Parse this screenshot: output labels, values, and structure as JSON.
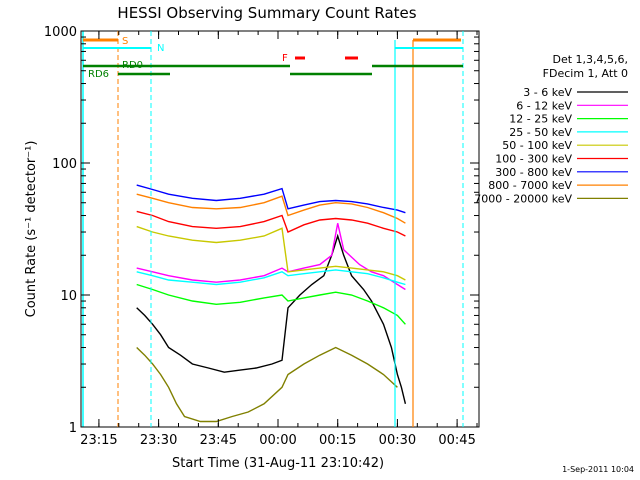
{
  "chart_data": {
    "type": "line",
    "title": "HESSI Observing Summary Count Rates",
    "xlabel": "Start Time (31-Aug-11 23:10:42)",
    "ylabel": "Count Rate (s⁻¹ detector⁻¹)",
    "x_unit": "minutes after 23:10:42",
    "xlim": [
      0,
      100
    ],
    "ylim": [
      1,
      1000
    ],
    "yscale": "log",
    "x_ticks": [
      {
        "t": 4.5,
        "label": "23:15"
      },
      {
        "t": 19.5,
        "label": "23:30"
      },
      {
        "t": 34.5,
        "label": "23:45"
      },
      {
        "t": 49.5,
        "label": "00:00"
      },
      {
        "t": 64.5,
        "label": "00:15"
      },
      {
        "t": 79.5,
        "label": "00:30"
      },
      {
        "t": 94.5,
        "label": "00:45"
      }
    ],
    "y_ticks": [
      {
        "v": 1,
        "label": "1"
      },
      {
        "v": 10,
        "label": "10"
      },
      {
        "v": 100,
        "label": "100"
      },
      {
        "v": 1000,
        "label": "1000"
      }
    ],
    "legend_header": [
      "Det 1,3,4,5,6,",
      "FDecim 1, Att 0"
    ],
    "legend_position": "right",
    "series": [
      {
        "name": "3 - 6 keV",
        "color": "#000000",
        "x": [
          14,
          16,
          18,
          20,
          22,
          25,
          28,
          32,
          36,
          40,
          44,
          48,
          50.5,
          52,
          55,
          58,
          61,
          63,
          64.5,
          66,
          68,
          71,
          73,
          76,
          78,
          79.5,
          80.5,
          81.5
        ],
        "values": [
          8,
          7,
          6,
          5,
          4,
          3.5,
          3,
          2.8,
          2.6,
          2.7,
          2.8,
          3,
          3.2,
          8,
          10,
          12,
          14,
          20,
          28,
          20,
          14,
          11,
          9,
          6,
          4,
          2.5,
          2,
          1.5
        ]
      },
      {
        "name": "6 - 12 keV",
        "color": "#ff00ff",
        "x": [
          14,
          18,
          22,
          28,
          34,
          40,
          46,
          50.5,
          52,
          56,
          60,
          63,
          64.5,
          66,
          70,
          73,
          76,
          79.5,
          81.5
        ],
        "values": [
          16,
          15,
          14,
          13,
          12.5,
          13,
          14,
          16,
          15,
          16,
          17,
          20,
          35,
          22,
          17,
          15,
          14,
          12,
          11
        ]
      },
      {
        "name": "12 - 25 keV",
        "color": "#00ff00",
        "x": [
          14,
          18,
          22,
          28,
          34,
          40,
          46,
          50.5,
          52,
          56,
          60,
          64,
          68,
          72,
          76,
          79.5,
          81.5
        ],
        "values": [
          12,
          11,
          10,
          9,
          8.5,
          8.8,
          9.5,
          10,
          9,
          9.5,
          10,
          10.5,
          10,
          9,
          8,
          7,
          6
        ]
      },
      {
        "name": "25 - 50 keV",
        "color": "#00ffff",
        "x": [
          14,
          18,
          22,
          28,
          34,
          40,
          46,
          50.5,
          52,
          56,
          60,
          64,
          68,
          72,
          76,
          79.5,
          81.5
        ],
        "values": [
          15,
          14,
          13,
          12.5,
          12,
          12.5,
          13.5,
          15,
          14,
          14.5,
          15,
          15.5,
          15,
          14.5,
          13.5,
          12.5,
          12
        ]
      },
      {
        "name": "50 - 100 keV",
        "color": "#c8c800",
        "x": [
          14,
          18,
          22,
          28,
          34,
          40,
          46,
          50.5,
          52,
          56,
          60,
          64,
          68,
          72,
          76,
          79.5,
          81.5
        ],
        "values": [
          33,
          30,
          28,
          26,
          25,
          26,
          28,
          32,
          15,
          15.5,
          16,
          16.5,
          16,
          15.5,
          15,
          14,
          13
        ]
      },
      {
        "name": "100 - 300 keV",
        "color": "#ff0000",
        "x": [
          14,
          18,
          22,
          28,
          34,
          40,
          46,
          50.5,
          52,
          56,
          60,
          64,
          68,
          72,
          76,
          79.5,
          81.5
        ],
        "values": [
          43,
          40,
          36,
          33,
          32,
          33,
          36,
          40,
          30,
          34,
          37,
          38,
          37,
          35,
          32,
          30,
          28
        ]
      },
      {
        "name": "300 - 800 keV",
        "color": "#0000ff",
        "x": [
          14,
          18,
          22,
          28,
          34,
          40,
          46,
          50.5,
          52,
          56,
          60,
          64,
          68,
          72,
          76,
          79.5,
          81.5
        ],
        "values": [
          68,
          63,
          58,
          54,
          52,
          54,
          58,
          64,
          45,
          48,
          51,
          52,
          51,
          49,
          46,
          44,
          42
        ]
      },
      {
        "name": "800 - 7000 keV",
        "color": "#ff8000",
        "x": [
          14,
          18,
          22,
          28,
          34,
          40,
          46,
          50.5,
          52,
          56,
          60,
          64,
          68,
          72,
          76,
          79.5,
          81.5
        ],
        "values": [
          58,
          54,
          50,
          46,
          45,
          46,
          50,
          56,
          40,
          44,
          48,
          50,
          49,
          46,
          42,
          38,
          35
        ]
      },
      {
        "name": "7000 - 20000 keV",
        "color": "#808000",
        "x": [
          14,
          16,
          18,
          20,
          22,
          24,
          26,
          30,
          34,
          38,
          42,
          46,
          50.5,
          52,
          56,
          60,
          64,
          68,
          72,
          76,
          79.5
        ],
        "values": [
          4,
          3.5,
          3,
          2.5,
          2,
          1.5,
          1.2,
          1.1,
          1.1,
          1.2,
          1.3,
          1.5,
          2,
          2.5,
          3,
          3.5,
          4,
          3.5,
          3,
          2.5,
          2
        ]
      }
    ],
    "flags": [
      {
        "label": "S",
        "color": "#ff8000"
      },
      {
        "label": "N",
        "color": "#00ffff"
      },
      {
        "label": "RD0",
        "color": "#008000"
      },
      {
        "label": "RD6",
        "color": "#008000"
      },
      {
        "label": "F",
        "color": "#ff0000"
      }
    ],
    "footer_stamp": "1-Sep-2011 10:04"
  }
}
